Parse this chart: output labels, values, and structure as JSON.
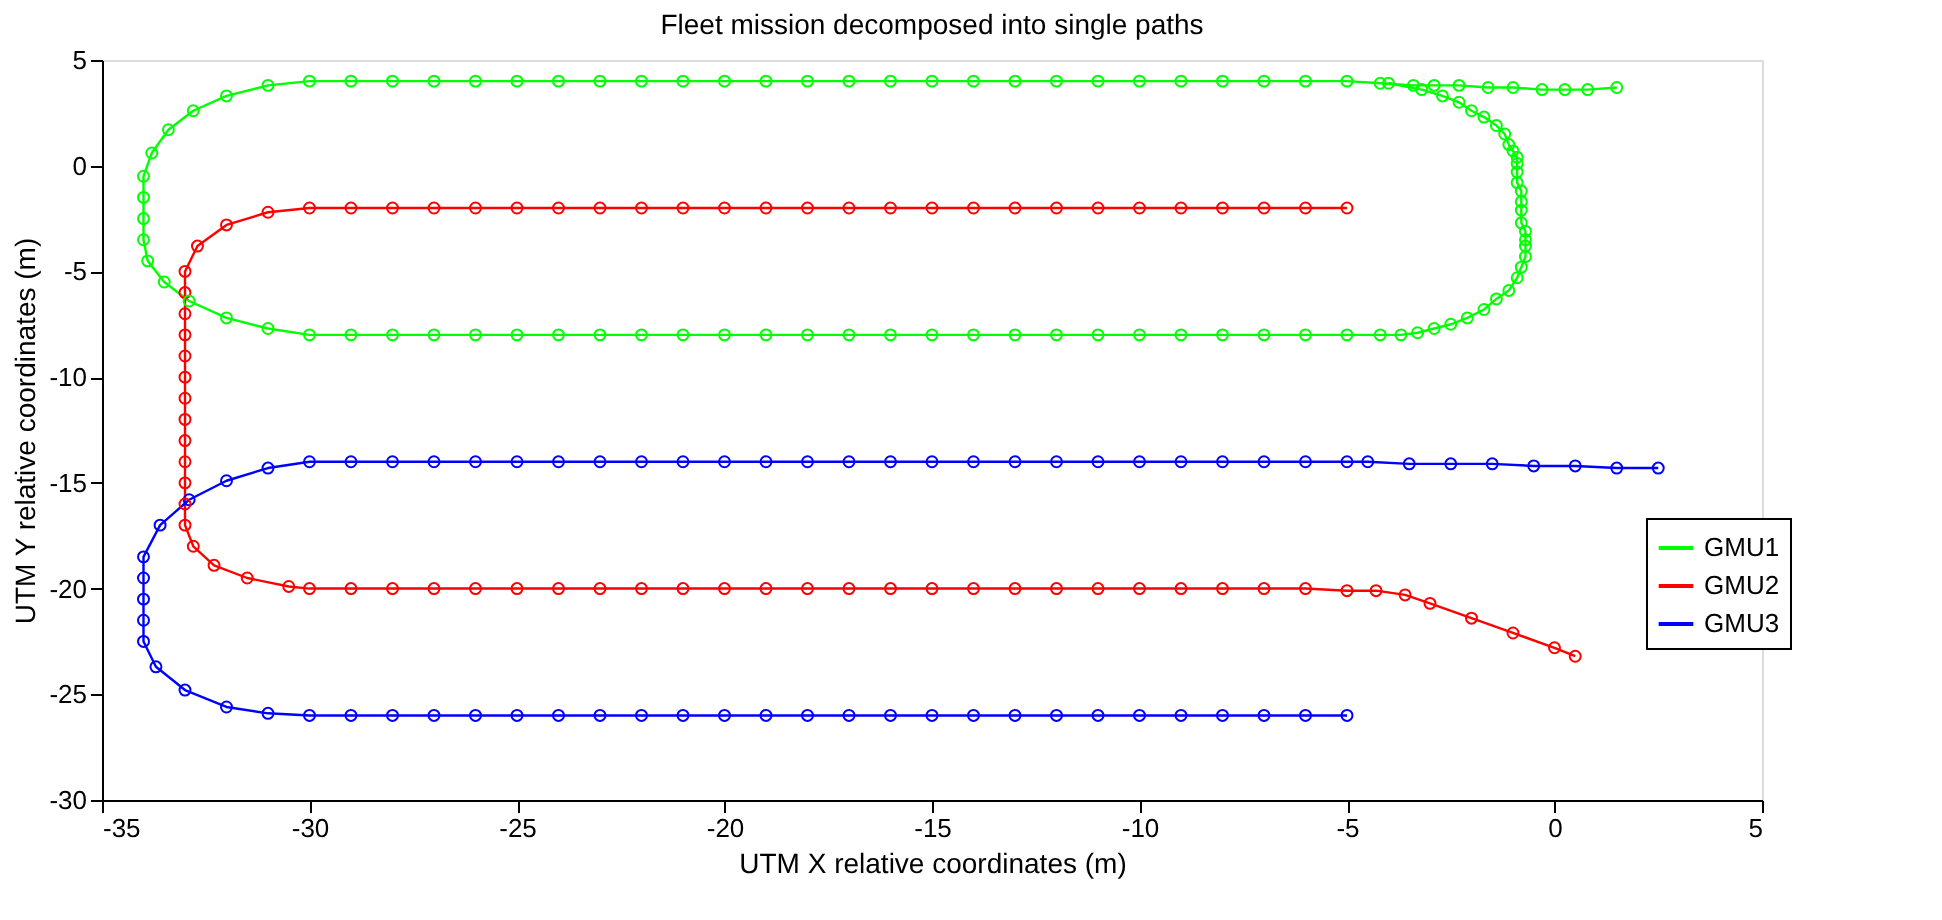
{
  "chart_data": {
    "type": "line",
    "title": "Fleet mission decomposed into single paths",
    "xlabel": "UTM X relative coordinates (m)",
    "ylabel": "UTM Y relative coordinates (m)",
    "xlim": [
      -35,
      5
    ],
    "xticks": [
      -35,
      -30,
      -25,
      -20,
      -15,
      -10,
      -5,
      0,
      5
    ],
    "ylim": [
      -30,
      5
    ],
    "yticks": [
      -30,
      -25,
      -20,
      -15,
      -10,
      -5,
      0,
      5
    ],
    "grid": false,
    "legend": "right",
    "marker": "circle",
    "line_style": "solid",
    "series": [
      {
        "name": "GMU1",
        "color": "#00ff00",
        "x": [
          1.5,
          0.8,
          0.25,
          -0.3,
          -1.0,
          -1.6,
          -2.3,
          -2.9,
          -3.4,
          -4.2,
          -5,
          -6,
          -7,
          -8,
          -9,
          -10,
          -11,
          -12,
          -13,
          -14,
          -15,
          -16,
          -17,
          -18,
          -19,
          -20,
          -21,
          -22,
          -23,
          -24,
          -25,
          -26,
          -27,
          -28,
          -29,
          -30,
          -31,
          -32,
          -32.8,
          -33.4,
          -33.8,
          -34,
          -34,
          -34,
          -34,
          -33.9,
          -33.5,
          -32.9,
          -32,
          -31,
          -30,
          -29,
          -28,
          -27,
          -26,
          -25,
          -24,
          -23,
          -22,
          -21,
          -20,
          -19,
          -18,
          -17,
          -16,
          -15,
          -14,
          -13,
          -12,
          -11,
          -10,
          -9,
          -8,
          -7,
          -6,
          -5,
          -4.2,
          -3.7,
          -3.3,
          -2.9,
          -2.5,
          -2.1,
          -1.7,
          -1.4,
          -1.1,
          -0.9,
          -0.8,
          -0.7,
          -0.7,
          -0.7,
          -0.7,
          -0.8,
          -0.8,
          -0.8,
          -0.8,
          -0.9,
          -0.9,
          -0.9,
          -0.9,
          -1.0,
          -1.1,
          -1.2,
          -1.4,
          -1.7,
          -2.0,
          -2.3,
          -2.7,
          -3.2,
          -4.0
        ],
        "values": [
          3.7,
          3.6,
          3.6,
          3.6,
          3.7,
          3.7,
          3.8,
          3.8,
          3.8,
          3.9,
          4,
          4,
          4,
          4,
          4,
          4,
          4,
          4,
          4,
          4,
          4,
          4,
          4,
          4,
          4,
          4,
          4,
          4,
          4,
          4,
          4,
          4,
          4,
          4,
          4,
          4,
          3.8,
          3.3,
          2.6,
          1.7,
          0.6,
          -0.5,
          -1.5,
          -2.5,
          -3.5,
          -4.5,
          -5.5,
          -6.4,
          -7.2,
          -7.7,
          -8,
          -8,
          -8,
          -8,
          -8,
          -8,
          -8,
          -8,
          -8,
          -8,
          -8,
          -8,
          -8,
          -8,
          -8,
          -8,
          -8,
          -8,
          -8,
          -8,
          -8,
          -8,
          -8,
          -8,
          -8,
          -8,
          -8,
          -8,
          -7.9,
          -7.7,
          -7.5,
          -7.2,
          -6.8,
          -6.3,
          -5.9,
          -5.3,
          -4.8,
          -4.3,
          -3.8,
          -3.5,
          -3.1,
          -2.7,
          -2.1,
          -1.7,
          -1.2,
          -0.8,
          -0.3,
          0.1,
          0.4,
          0.7,
          1.0,
          1.5,
          1.9,
          2.3,
          2.6,
          3.0,
          3.3,
          3.6,
          3.9
        ]
      },
      {
        "name": "GMU2",
        "color": "#ff0000",
        "x": [
          -5,
          -6,
          -7,
          -8,
          -9,
          -10,
          -11,
          -12,
          -13,
          -14,
          -15,
          -16,
          -17,
          -18,
          -19,
          -20,
          -21,
          -22,
          -23,
          -24,
          -25,
          -26,
          -27,
          -28,
          -29,
          -30,
          -31,
          -32,
          -32.7,
          -33,
          -33,
          -33,
          -33,
          -33,
          -33,
          -33,
          -33,
          -33,
          -33,
          -33,
          -33,
          -33,
          -32.8,
          -32.3,
          -31.5,
          -30.5,
          -30,
          -29,
          -28,
          -27,
          -26,
          -25,
          -24,
          -23,
          -22,
          -21,
          -20,
          -19,
          -18,
          -17,
          -16,
          -15,
          -14,
          -13,
          -12,
          -11,
          -10,
          -9,
          -8,
          -7,
          -6,
          -5,
          -4.3,
          -3.6,
          -3,
          -2,
          -1,
          0,
          0.5
        ],
        "values": [
          -2,
          -2,
          -2,
          -2,
          -2,
          -2,
          -2,
          -2,
          -2,
          -2,
          -2,
          -2,
          -2,
          -2,
          -2,
          -2,
          -2,
          -2,
          -2,
          -2,
          -2,
          -2,
          -2,
          -2,
          -2,
          -2,
          -2.2,
          -2.8,
          -3.8,
          -5,
          -6,
          -7,
          -8,
          -9,
          -10,
          -11,
          -12,
          -13,
          -14,
          -15,
          -16,
          -17,
          -18,
          -18.9,
          -19.5,
          -19.9,
          -20,
          -20,
          -20,
          -20,
          -20,
          -20,
          -20,
          -20,
          -20,
          -20,
          -20,
          -20,
          -20,
          -20,
          -20,
          -20,
          -20,
          -20,
          -20,
          -20,
          -20,
          -20,
          -20,
          -20,
          -20,
          -20.1,
          -20.1,
          -20.3,
          -20.7,
          -21.4,
          -22.1,
          -22.8,
          -23.2
        ]
      },
      {
        "name": "GMU3",
        "color": "#0000ff",
        "x": [
          2.5,
          1.5,
          0.5,
          -0.5,
          -1.5,
          -2.5,
          -3.5,
          -4.5,
          -5,
          -6,
          -7,
          -8,
          -9,
          -10,
          -11,
          -12,
          -13,
          -14,
          -15,
          -16,
          -17,
          -18,
          -19,
          -20,
          -21,
          -22,
          -23,
          -24,
          -25,
          -26,
          -27,
          -28,
          -29,
          -30,
          -31,
          -32,
          -32.9,
          -33.6,
          -34,
          -34,
          -34,
          -34,
          -34,
          -33.7,
          -33,
          -32,
          -31,
          -30,
          -29,
          -28,
          -27,
          -26,
          -25,
          -24,
          -23,
          -22,
          -21,
          -20,
          -19,
          -18,
          -17,
          -16,
          -15,
          -14,
          -13,
          -12,
          -11,
          -10,
          -9,
          -8,
          -7,
          -6,
          -5
        ],
        "values": [
          -14.3,
          -14.3,
          -14.2,
          -14.2,
          -14.1,
          -14.1,
          -14.1,
          -14,
          -14,
          -14,
          -14,
          -14,
          -14,
          -14,
          -14,
          -14,
          -14,
          -14,
          -14,
          -14,
          -14,
          -14,
          -14,
          -14,
          -14,
          -14,
          -14,
          -14,
          -14,
          -14,
          -14,
          -14,
          -14,
          -14,
          -14.3,
          -14.9,
          -15.8,
          -17,
          -18.5,
          -19.5,
          -20.5,
          -21.5,
          -22.5,
          -23.7,
          -24.8,
          -25.6,
          -25.9,
          -26,
          -26,
          -26,
          -26,
          -26,
          -26,
          -26,
          -26,
          -26,
          -26,
          -26,
          -26,
          -26,
          -26,
          -26,
          -26,
          -26,
          -26,
          -26,
          -26,
          -26,
          -26,
          -26,
          -26,
          -26,
          -26
        ]
      }
    ]
  }
}
